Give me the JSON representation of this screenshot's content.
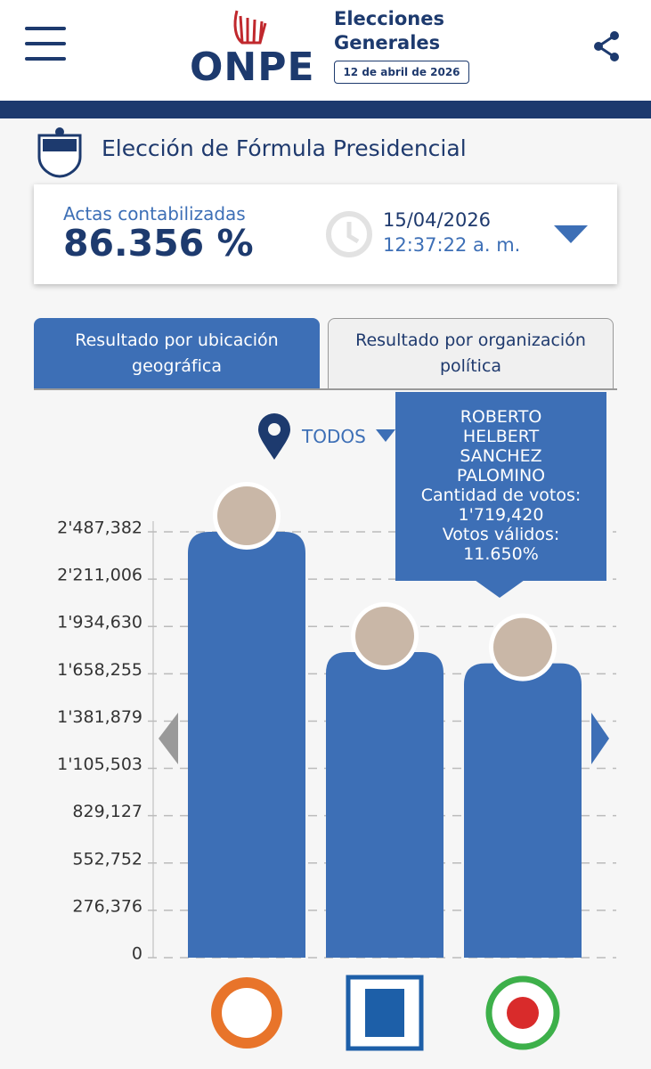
{
  "header": {
    "logo": "ONPE",
    "title_line1": "Elecciones",
    "title_line2": "Generales",
    "date": "12 de abril de 2026"
  },
  "election_title": "Elección de Fórmula Presidencial",
  "progress": {
    "label": "Actas contabilizadas",
    "value": "86.356 %",
    "date": "15/04/2026",
    "time": "12:37:22 a. m."
  },
  "tabs": [
    "Resultado por ubicación geográfica",
    "Resultado por organización política"
  ],
  "filter": "TODOS",
  "tooltip": {
    "name": "ROBERTO HELBERT SANCHEZ PALOMINO",
    "votes": "Cantidad de votos: 1'719,420",
    "valid": "Votos válidos: 11.650%"
  },
  "chart_data": {
    "type": "bar",
    "categories": [
      null,
      null,
      null
    ],
    "values": [
      2487382,
      1785000,
      1719420
    ],
    "color": "#3d6fb6",
    "ylim": [
      0,
      2487382
    ],
    "yticks": [
      0,
      {
        "value": 276376,
        "label": "276,376"
      },
      {
        "value": 552752,
        "label": "552,752"
      },
      {
        "value": 829127,
        "label": "829,127"
      },
      {
        "value": 1105503,
        "label": "1'105,503"
      },
      {
        "value": 1381879,
        "label": "1'381,879"
      },
      {
        "value": 1658255,
        "label": "1'658,255"
      },
      {
        "value": 1934630,
        "label": "1'934,630"
      },
      {
        "value": 2211006,
        "label": "2'211,006"
      },
      {
        "value": 2487382,
        "label": "2'487,382"
      }
    ],
    "grid": true
  }
}
